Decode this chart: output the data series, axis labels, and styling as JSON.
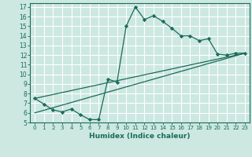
{
  "title": "",
  "xlabel": "Humidex (Indice chaleur)",
  "bg_color": "#cce8e0",
  "line_color": "#1a6b5a",
  "grid_color": "#ffffff",
  "xlim": [
    -0.5,
    23.5
  ],
  "ylim": [
    5,
    17.4
  ],
  "yticks": [
    5,
    6,
    7,
    8,
    9,
    10,
    11,
    12,
    13,
    14,
    15,
    16,
    17
  ],
  "xticks": [
    0,
    1,
    2,
    3,
    4,
    5,
    6,
    7,
    8,
    9,
    10,
    11,
    12,
    13,
    14,
    15,
    16,
    17,
    18,
    19,
    20,
    21,
    22,
    23
  ],
  "line1_x": [
    0,
    1,
    2,
    3,
    4,
    5,
    6,
    7,
    8,
    9,
    10,
    11,
    12,
    13,
    14,
    15,
    16,
    17,
    18,
    19,
    20,
    21,
    22,
    23
  ],
  "line1_y": [
    7.5,
    6.9,
    6.3,
    6.1,
    6.4,
    5.8,
    5.3,
    5.3,
    9.5,
    9.2,
    15.0,
    17.0,
    15.7,
    16.1,
    15.5,
    14.8,
    14.0,
    14.0,
    13.5,
    13.7,
    12.1,
    12.0,
    12.2,
    12.2
  ],
  "line2_x": [
    0,
    23
  ],
  "line2_y": [
    7.5,
    12.2
  ],
  "line3_x": [
    0,
    23
  ],
  "line3_y": [
    6.0,
    12.2
  ]
}
